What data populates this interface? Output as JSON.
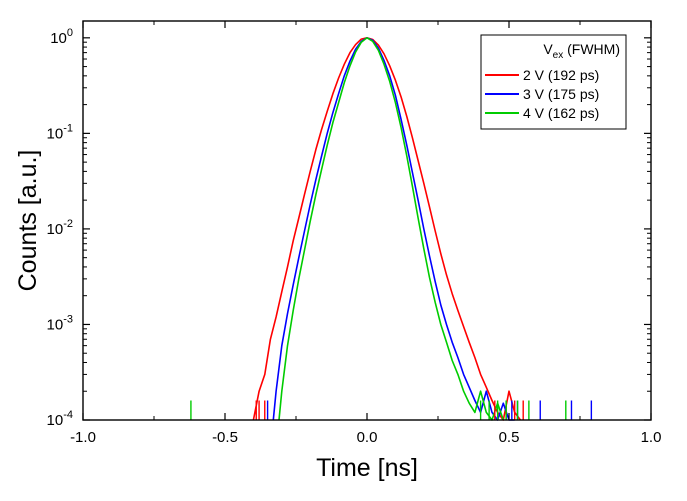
{
  "chart_data": {
    "type": "line",
    "title": "",
    "xlabel": "Time [ns]",
    "ylabel": "Counts [a.u.]",
    "xlim": [
      -1.0,
      1.0
    ],
    "ylim": [
      0.0001,
      1.5
    ],
    "y_scale": "log",
    "grid": false,
    "legend_position": "top-right",
    "legend_title": {
      "base": "V",
      "sub": "ex",
      "suffix": " (FWHM)"
    },
    "x_ticks": [
      {
        "value": -1.0,
        "label": "-1.0"
      },
      {
        "value": -0.5,
        "label": "-0.5"
      },
      {
        "value": 0.0,
        "label": "0.0"
      },
      {
        "value": 0.5,
        "label": "0.5"
      },
      {
        "value": 1.0,
        "label": "1.0"
      }
    ],
    "y_ticks": [
      {
        "value": 1,
        "base": "10",
        "exp": "0"
      },
      {
        "value": 0.1,
        "base": "10",
        "exp": "-1"
      },
      {
        "value": 0.01,
        "base": "10",
        "exp": "-2"
      },
      {
        "value": 0.001,
        "base": "10",
        "exp": "-3"
      },
      {
        "value": 0.0001,
        "base": "10",
        "exp": "-4"
      }
    ],
    "series": [
      {
        "name": "2 V (192 ps)",
        "color": "#ff0000",
        "x": [
          -0.4,
          -0.38,
          -0.36,
          -0.34,
          -0.32,
          -0.3,
          -0.28,
          -0.26,
          -0.24,
          -0.22,
          -0.2,
          -0.18,
          -0.16,
          -0.14,
          -0.12,
          -0.1,
          -0.08,
          -0.06,
          -0.04,
          -0.02,
          0.0,
          0.02,
          0.04,
          0.06,
          0.08,
          0.1,
          0.12,
          0.14,
          0.16,
          0.18,
          0.2,
          0.22,
          0.24,
          0.26,
          0.28,
          0.3,
          0.32,
          0.34,
          0.36,
          0.38,
          0.4,
          0.42,
          0.44,
          0.46,
          0.48,
          0.5,
          0.52,
          0.54
        ],
        "y": [
          0.0001,
          0.0002,
          0.0003,
          0.0007,
          0.0012,
          0.0022,
          0.004,
          0.0075,
          0.013,
          0.023,
          0.04,
          0.068,
          0.11,
          0.17,
          0.26,
          0.38,
          0.53,
          0.7,
          0.85,
          0.97,
          1.0,
          0.96,
          0.84,
          0.68,
          0.51,
          0.36,
          0.24,
          0.15,
          0.09,
          0.052,
          0.03,
          0.017,
          0.0095,
          0.0055,
          0.0033,
          0.0021,
          0.0014,
          0.00095,
          0.00065,
          0.00045,
          0.0003,
          0.00022,
          0.00016,
          0.00012,
          0.0001,
          0.0002,
          0.00012,
          0.0001
        ]
      },
      {
        "name": "3 V (175 ps)",
        "color": "#0000ff",
        "x": [
          -0.33,
          -0.32,
          -0.3,
          -0.28,
          -0.26,
          -0.24,
          -0.22,
          -0.2,
          -0.18,
          -0.16,
          -0.14,
          -0.12,
          -0.1,
          -0.08,
          -0.06,
          -0.04,
          -0.02,
          0.0,
          0.02,
          0.04,
          0.06,
          0.08,
          0.1,
          0.12,
          0.14,
          0.16,
          0.18,
          0.2,
          0.22,
          0.24,
          0.26,
          0.28,
          0.3,
          0.32,
          0.34,
          0.36,
          0.38,
          0.4,
          0.42,
          0.44,
          0.46,
          0.48,
          0.5,
          0.52
        ],
        "y": [
          0.0001,
          0.0002,
          0.0006,
          0.0013,
          0.0026,
          0.005,
          0.0095,
          0.018,
          0.033,
          0.058,
          0.1,
          0.165,
          0.26,
          0.4,
          0.57,
          0.76,
          0.92,
          1.0,
          0.94,
          0.78,
          0.58,
          0.4,
          0.25,
          0.14,
          0.075,
          0.039,
          0.02,
          0.01,
          0.0052,
          0.0028,
          0.0016,
          0.001,
          0.00065,
          0.00045,
          0.0003,
          0.00022,
          0.00016,
          0.00012,
          0.0002,
          0.00012,
          0.0001,
          0.00015,
          0.0001,
          0.0001
        ]
      },
      {
        "name": "4 V (162 ps)",
        "color": "#00cc00",
        "x": [
          -0.31,
          -0.3,
          -0.28,
          -0.26,
          -0.24,
          -0.22,
          -0.2,
          -0.18,
          -0.16,
          -0.14,
          -0.12,
          -0.1,
          -0.08,
          -0.06,
          -0.04,
          -0.02,
          0.0,
          0.02,
          0.04,
          0.06,
          0.08,
          0.1,
          0.12,
          0.14,
          0.16,
          0.18,
          0.2,
          0.22,
          0.24,
          0.26,
          0.28,
          0.3,
          0.32,
          0.34,
          0.36,
          0.38,
          0.4,
          0.42,
          0.44,
          0.46,
          0.48
        ],
        "y": [
          0.0001,
          0.0002,
          0.0006,
          0.0014,
          0.003,
          0.006,
          0.012,
          0.023,
          0.042,
          0.075,
          0.13,
          0.21,
          0.34,
          0.51,
          0.71,
          0.9,
          1.0,
          0.92,
          0.74,
          0.53,
          0.35,
          0.21,
          0.115,
          0.058,
          0.028,
          0.013,
          0.0062,
          0.0031,
          0.0017,
          0.001,
          0.00065,
          0.00042,
          0.0003,
          0.0002,
          0.00015,
          0.00012,
          0.0002,
          0.00012,
          0.0001,
          0.00015,
          0.0001
        ]
      }
    ],
    "noise_spikes": [
      {
        "series": 0,
        "x": [
          -0.39,
          -0.38,
          -0.36,
          0.45,
          0.49,
          0.52,
          0.55
        ]
      },
      {
        "series": 1,
        "x": [
          -0.35,
          0.51,
          0.53,
          0.61,
          0.72,
          0.79
        ]
      },
      {
        "series": 2,
        "x": [
          -0.62,
          0.4,
          0.43,
          0.46,
          0.49,
          0.53,
          0.57,
          0.7
        ]
      }
    ]
  }
}
